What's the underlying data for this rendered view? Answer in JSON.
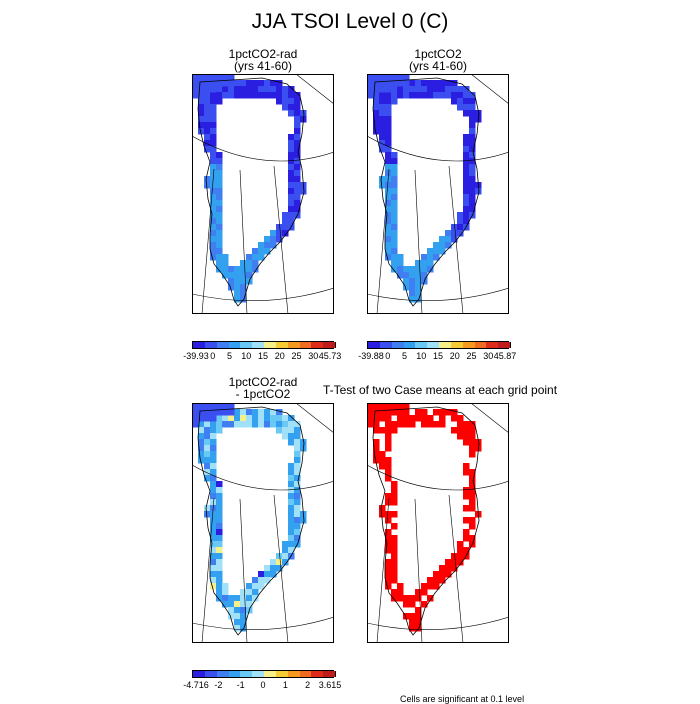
{
  "figure": {
    "title": "JJA TSOI Level 0 (C)"
  },
  "panels": [
    {
      "id": "p1",
      "title_line1": "1pctCO2-rad",
      "title_line2": "(yrs 41-60)"
    },
    {
      "id": "p2",
      "title_line1": "1pctCO2",
      "title_line2": "(yrs 41-60)"
    },
    {
      "id": "p3",
      "title_line1": "1pctCO2-rad",
      "title_line2": "- 1pctCO2"
    },
    {
      "id": "p4",
      "title_line1": "T-Test of two Case means at each grid point",
      "title_line2": ""
    }
  ],
  "colorbars": [
    {
      "id": "cb1",
      "colors": [
        "#2a1fe0",
        "#3b4ff0",
        "#3f7ff2",
        "#33a0f0",
        "#6ac8f5",
        "#a0e0f8",
        "#f5f08a",
        "#f5cc33",
        "#f59a1f",
        "#f06a1f",
        "#e02a1a",
        "#c01c1c"
      ],
      "labels": [
        "-39.93",
        "0",
        "5",
        "10",
        "15",
        "20",
        "25",
        "30",
        "45.73"
      ]
    },
    {
      "id": "cb2",
      "colors": [
        "#2a1fe0",
        "#3b4ff0",
        "#3f7ff2",
        "#33a0f0",
        "#6ac8f5",
        "#a0e0f8",
        "#f5f08a",
        "#f5cc33",
        "#f59a1f",
        "#f06a1f",
        "#e02a1a",
        "#c01c1c"
      ],
      "labels": [
        "-39.88",
        "0",
        "5",
        "10",
        "15",
        "20",
        "25",
        "30",
        "45.87"
      ]
    },
    {
      "id": "cb3",
      "colors": [
        "#2a1fe0",
        "#3b4ff0",
        "#3f7ff2",
        "#33a0f0",
        "#6ac8f5",
        "#a0e0f8",
        "#f5f08a",
        "#f5cc33",
        "#f59a1f",
        "#f06a1f",
        "#e02a1a",
        "#c01c1c"
      ],
      "labels": [
        "-4.716",
        "-2",
        "-1",
        "0",
        "1",
        "2",
        "3.615"
      ]
    }
  ],
  "footnote": "Cells are significant at 0.1 level"
}
